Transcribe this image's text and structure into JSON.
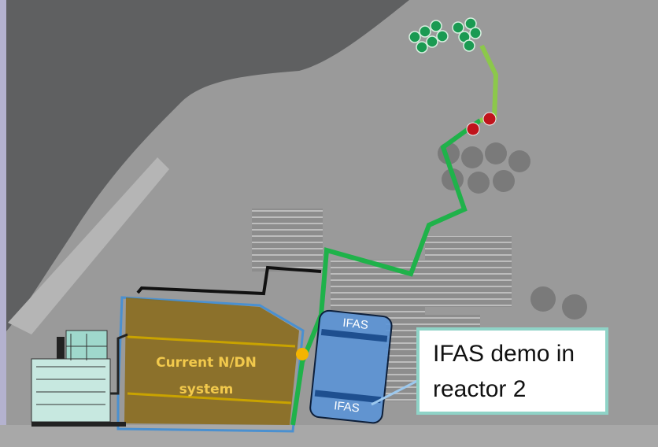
{
  "labels": {
    "system": [
      "Current N/DN",
      "system"
    ],
    "ifas_top": "IFAS",
    "ifas_bottom": "IFAS",
    "callout": [
      "IFAS demo in",
      "reactor 2"
    ]
  }
}
